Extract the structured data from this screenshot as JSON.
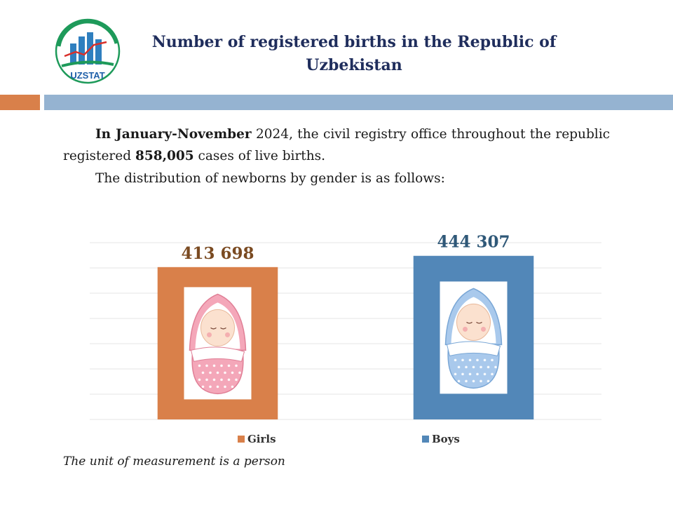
{
  "header": {
    "logo_text": "UZSTAT",
    "title": "Number of registered births in the Republic of Uzbekistan"
  },
  "intro": {
    "p1_bold_period": "In January-November",
    "p1_after_period": " 2024, the civil registry office throughout the republic registered ",
    "p1_bold_total": "858,005",
    "p1_tail": " cases of live births.",
    "p2": "The distribution of newborns by gender is as follows:"
  },
  "note": "The unit of measurement is a person",
  "colors": {
    "girls": "#d9804a",
    "boys": "#5287b8",
    "title": "#1f2d5c"
  },
  "chart_data": {
    "type": "bar",
    "categories": [
      "Girls",
      "Boys"
    ],
    "values": [
      413698,
      444307
    ],
    "value_labels": [
      "413 698",
      "444 307"
    ],
    "ylim": [
      0,
      480000
    ],
    "grid": true,
    "legend": "bottom",
    "legend_entries": [
      "Girls",
      "Boys"
    ],
    "label_colors": [
      "#7a4a21",
      "#2f5878"
    ],
    "illustrations": [
      "baby-girl-swaddled-pink",
      "baby-boy-swaddled-blue"
    ]
  }
}
